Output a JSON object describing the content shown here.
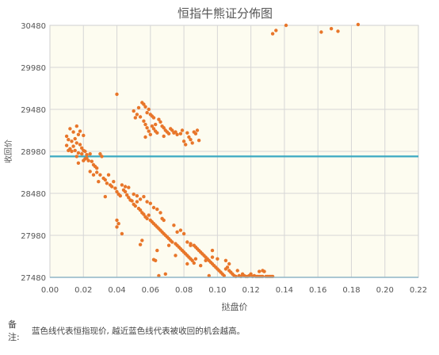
{
  "chart_data": {
    "type": "scatter",
    "title": "恒指牛熊证分佈图",
    "xlabel": "挞盘价",
    "ylabel": "收回价",
    "xlim": [
      0,
      0.22
    ],
    "ylim": [
      27480,
      30480
    ],
    "x_ticks": [
      "0.00",
      "0.02",
      "0.04",
      "0.06",
      "0.08",
      "0.10",
      "0.12",
      "0.14",
      "0.16",
      "0.18",
      "0.20",
      "0.22"
    ],
    "y_ticks": [
      "27480",
      "27980",
      "28480",
      "28980",
      "29480",
      "29980",
      "30480"
    ],
    "reference_line": {
      "y": 28920,
      "color": "#3aa9c2"
    },
    "grid": true,
    "point_color": "#e8762a",
    "background_color": "#fdfcf0",
    "points": [
      [
        0.01,
        29160
      ],
      [
        0.011,
        29120
      ],
      [
        0.01,
        29050
      ],
      [
        0.012,
        29010
      ],
      [
        0.013,
        29100
      ],
      [
        0.011,
        28990
      ],
      [
        0.014,
        29040
      ],
      [
        0.015,
        29130
      ],
      [
        0.016,
        29080
      ],
      [
        0.015,
        28990
      ],
      [
        0.012,
        29250
      ],
      [
        0.014,
        29210
      ],
      [
        0.017,
        29180
      ],
      [
        0.018,
        29060
      ],
      [
        0.019,
        29020
      ],
      [
        0.02,
        28990
      ],
      [
        0.018,
        29220
      ],
      [
        0.016,
        29280
      ],
      [
        0.02,
        29170
      ],
      [
        0.021,
        28980
      ],
      [
        0.013,
        28980
      ],
      [
        0.017,
        28960
      ],
      [
        0.019,
        28950
      ],
      [
        0.022,
        28940
      ],
      [
        0.024,
        28950
      ],
      [
        0.022,
        28900
      ],
      [
        0.025,
        28860
      ],
      [
        0.026,
        28820
      ],
      [
        0.027,
        28800
      ],
      [
        0.028,
        28780
      ],
      [
        0.023,
        28870
      ],
      [
        0.021,
        28890
      ],
      [
        0.016,
        28920
      ],
      [
        0.017,
        28840
      ],
      [
        0.02,
        28870
      ],
      [
        0.024,
        28740
      ],
      [
        0.026,
        28700
      ],
      [
        0.028,
        28730
      ],
      [
        0.03,
        28700
      ],
      [
        0.032,
        28660
      ],
      [
        0.03,
        28950
      ],
      [
        0.031,
        28920
      ],
      [
        0.033,
        28640
      ],
      [
        0.034,
        28600
      ],
      [
        0.036,
        28580
      ],
      [
        0.037,
        28560
      ],
      [
        0.038,
        28620
      ],
      [
        0.039,
        28540
      ],
      [
        0.04,
        28500
      ],
      [
        0.041,
        28470
      ],
      [
        0.029,
        28620
      ],
      [
        0.035,
        28700
      ],
      [
        0.033,
        28440
      ],
      [
        0.042,
        28450
      ],
      [
        0.043,
        28580
      ],
      [
        0.044,
        28520
      ],
      [
        0.045,
        28500
      ],
      [
        0.046,
        28460
      ],
      [
        0.047,
        28430
      ],
      [
        0.048,
        28400
      ],
      [
        0.045,
        28560
      ],
      [
        0.047,
        28550
      ],
      [
        0.049,
        28390
      ],
      [
        0.05,
        28350
      ],
      [
        0.051,
        28330
      ],
      [
        0.052,
        28380
      ],
      [
        0.053,
        28300
      ],
      [
        0.054,
        28280
      ],
      [
        0.055,
        28250
      ],
      [
        0.056,
        28230
      ],
      [
        0.05,
        28470
      ],
      [
        0.052,
        28450
      ],
      [
        0.054,
        28410
      ],
      [
        0.056,
        28440
      ],
      [
        0.057,
        28200
      ],
      [
        0.058,
        28180
      ],
      [
        0.059,
        28220
      ],
      [
        0.06,
        28160
      ],
      [
        0.061,
        28140
      ],
      [
        0.062,
        28120
      ],
      [
        0.058,
        28380
      ],
      [
        0.06,
        28360
      ],
      [
        0.062,
        28310
      ],
      [
        0.063,
        28100
      ],
      [
        0.064,
        28080
      ],
      [
        0.065,
        28060
      ],
      [
        0.066,
        28040
      ],
      [
        0.067,
        28020
      ],
      [
        0.068,
        28000
      ],
      [
        0.069,
        27980
      ],
      [
        0.064,
        28290
      ],
      [
        0.066,
        28250
      ],
      [
        0.067,
        28180
      ],
      [
        0.068,
        28160
      ],
      [
        0.07,
        27960
      ],
      [
        0.071,
        27940
      ],
      [
        0.072,
        27920
      ],
      [
        0.073,
        27900
      ],
      [
        0.074,
        28100
      ],
      [
        0.075,
        27880
      ],
      [
        0.076,
        27860
      ],
      [
        0.077,
        27840
      ],
      [
        0.078,
        27820
      ],
      [
        0.079,
        27800
      ],
      [
        0.08,
        27780
      ],
      [
        0.081,
        27760
      ],
      [
        0.082,
        27740
      ],
      [
        0.083,
        27720
      ],
      [
        0.084,
        27700
      ],
      [
        0.085,
        27680
      ],
      [
        0.076,
        28020
      ],
      [
        0.078,
        28040
      ],
      [
        0.08,
        28000
      ],
      [
        0.082,
        27900
      ],
      [
        0.084,
        27880
      ],
      [
        0.086,
        27860
      ],
      [
        0.087,
        27840
      ],
      [
        0.088,
        27820
      ],
      [
        0.089,
        27800
      ],
      [
        0.09,
        27780
      ],
      [
        0.091,
        27760
      ],
      [
        0.092,
        27740
      ],
      [
        0.093,
        27720
      ],
      [
        0.094,
        27700
      ],
      [
        0.095,
        27680
      ],
      [
        0.096,
        27660
      ],
      [
        0.097,
        27640
      ],
      [
        0.098,
        27620
      ],
      [
        0.099,
        27600
      ],
      [
        0.1,
        27580
      ],
      [
        0.101,
        27560
      ],
      [
        0.102,
        27540
      ],
      [
        0.103,
        27520
      ],
      [
        0.104,
        27500
      ],
      [
        0.105,
        27580
      ],
      [
        0.106,
        27600
      ],
      [
        0.107,
        27560
      ],
      [
        0.108,
        27540
      ],
      [
        0.109,
        27520
      ],
      [
        0.11,
        27500
      ],
      [
        0.111,
        27490
      ],
      [
        0.112,
        27560
      ],
      [
        0.113,
        27500
      ],
      [
        0.114,
        27490
      ],
      [
        0.115,
        27520
      ],
      [
        0.116,
        27500
      ],
      [
        0.117,
        27490
      ],
      [
        0.118,
        27490
      ],
      [
        0.119,
        27500
      ],
      [
        0.12,
        27520
      ],
      [
        0.121,
        27490
      ],
      [
        0.122,
        27500
      ],
      [
        0.123,
        27490
      ],
      [
        0.124,
        27490
      ],
      [
        0.125,
        27550
      ],
      [
        0.126,
        27490
      ],
      [
        0.127,
        27490
      ],
      [
        0.128,
        27550
      ],
      [
        0.129,
        27490
      ],
      [
        0.13,
        27490
      ],
      [
        0.131,
        27490
      ],
      [
        0.132,
        27490
      ],
      [
        0.133,
        27490
      ],
      [
        0.125,
        27490
      ],
      [
        0.127,
        27560
      ],
      [
        0.107,
        27640
      ],
      [
        0.1,
        27700
      ],
      [
        0.097,
        27720
      ],
      [
        0.095,
        27500
      ],
      [
        0.087,
        27700
      ],
      [
        0.04,
        28160
      ],
      [
        0.041,
        28120
      ],
      [
        0.04,
        28080
      ],
      [
        0.043,
        28000
      ],
      [
        0.054,
        27870
      ],
      [
        0.055,
        27920
      ],
      [
        0.062,
        27690
      ],
      [
        0.063,
        27680
      ],
      [
        0.064,
        27800
      ],
      [
        0.075,
        27740
      ],
      [
        0.065,
        27500
      ],
      [
        0.069,
        27520
      ],
      [
        0.082,
        27640
      ],
      [
        0.071,
        27860
      ],
      [
        0.084,
        27860
      ],
      [
        0.086,
        27650
      ],
      [
        0.09,
        27620
      ],
      [
        0.093,
        27680
      ],
      [
        0.097,
        27800
      ],
      [
        0.105,
        27680
      ],
      [
        0.04,
        29660
      ],
      [
        0.05,
        29460
      ],
      [
        0.052,
        29420
      ],
      [
        0.053,
        29500
      ],
      [
        0.055,
        29560
      ],
      [
        0.056,
        29540
      ],
      [
        0.057,
        29510
      ],
      [
        0.058,
        29440
      ],
      [
        0.059,
        29480
      ],
      [
        0.06,
        29420
      ],
      [
        0.051,
        29380
      ],
      [
        0.054,
        29390
      ],
      [
        0.056,
        29340
      ],
      [
        0.057,
        29300
      ],
      [
        0.058,
        29260
      ],
      [
        0.059,
        29220
      ],
      [
        0.06,
        29180
      ],
      [
        0.061,
        29400
      ],
      [
        0.062,
        29380
      ],
      [
        0.063,
        29300
      ],
      [
        0.061,
        29280
      ],
      [
        0.062,
        29250
      ],
      [
        0.063,
        29220
      ],
      [
        0.064,
        29200
      ],
      [
        0.065,
        29360
      ],
      [
        0.066,
        29330
      ],
      [
        0.067,
        29280
      ],
      [
        0.068,
        29260
      ],
      [
        0.069,
        29230
      ],
      [
        0.07,
        29210
      ],
      [
        0.071,
        29190
      ],
      [
        0.072,
        29250
      ],
      [
        0.073,
        29230
      ],
      [
        0.074,
        29200
      ],
      [
        0.075,
        29210
      ],
      [
        0.076,
        29180
      ],
      [
        0.078,
        29190
      ],
      [
        0.079,
        29230
      ],
      [
        0.08,
        29100
      ],
      [
        0.081,
        29060
      ],
      [
        0.082,
        29200
      ],
      [
        0.083,
        29150
      ],
      [
        0.084,
        29120
      ],
      [
        0.085,
        29080
      ],
      [
        0.086,
        29210
      ],
      [
        0.087,
        29190
      ],
      [
        0.088,
        29230
      ],
      [
        0.089,
        29110
      ],
      [
        0.057,
        29150
      ],
      [
        0.068,
        29160
      ],
      [
        0.133,
        30380
      ],
      [
        0.135,
        30420
      ],
      [
        0.141,
        30480
      ],
      [
        0.162,
        30400
      ],
      [
        0.168,
        30440
      ],
      [
        0.172,
        30410
      ],
      [
        0.184,
        30490
      ]
    ]
  },
  "note": {
    "label": "备注:",
    "text": "蓝色线代表恒指现价, 越近蓝色线代表被收回的机会越高。"
  }
}
